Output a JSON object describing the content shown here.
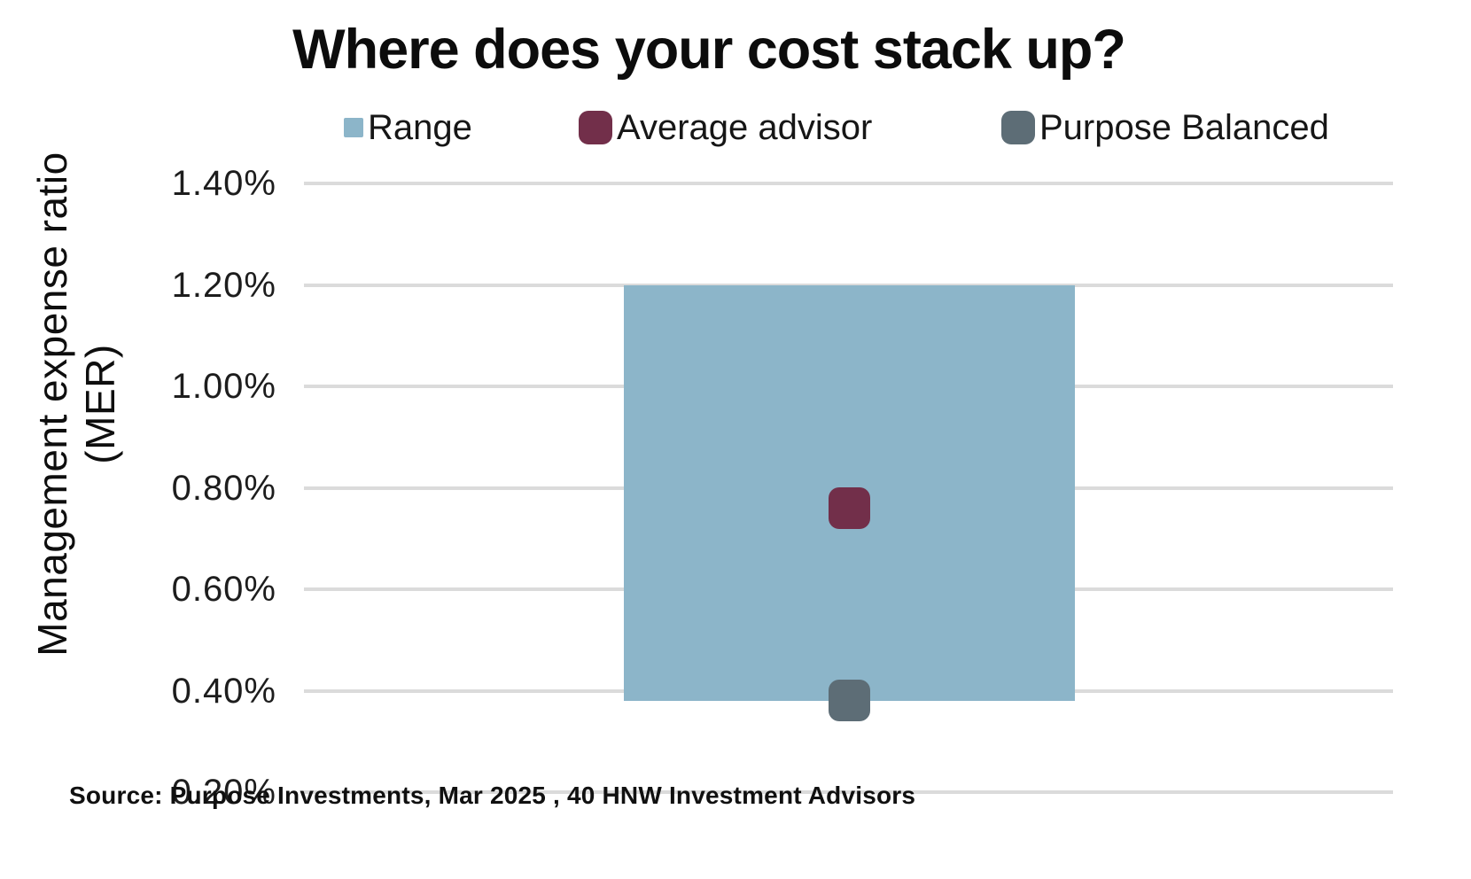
{
  "title": "Where does your cost stack up?",
  "legend": {
    "items": [
      {
        "label": "Range",
        "color": "#8CB5C9",
        "swatch": "small-square"
      },
      {
        "label": "Average advisor",
        "color": "#722F4A",
        "swatch": "rounded-square"
      },
      {
        "label": "Purpose Balanced",
        "color": "#5D6D76",
        "swatch": "rounded-square"
      }
    ]
  },
  "y_axis": {
    "title_line1": "Management expense ratio",
    "title_line2": "(MER)",
    "tick_labels": [
      "1.40%",
      "1.20%",
      "1.00%",
      "0.80%",
      "0.60%",
      "0.40%",
      "0.20%"
    ]
  },
  "source_note": "Source: Purpose Investments, Mar 2025 , 40 HNW Investment Advisors",
  "colors": {
    "background": "#FFFFFF",
    "text": "#111111",
    "gridline": "#DBDBDB",
    "range_bar": "#8CB5C9",
    "average_advisor": "#722F4A",
    "purpose_balanced": "#5D6D76"
  },
  "chart_data": {
    "type": "bar",
    "subtype": "floating-range-bar-with-point-markers",
    "title": "Where does your cost stack up?",
    "ylabel": "Management expense ratio (MER)",
    "xlabel": "",
    "ylim": [
      0.2,
      1.4
    ],
    "yticks": [
      1.4,
      1.2,
      1.0,
      0.8,
      0.6,
      0.4,
      0.2
    ],
    "ytick_unit": "percent",
    "grid": true,
    "legend_position": "top",
    "categories": [
      ""
    ],
    "series": [
      {
        "name": "Range",
        "type": "range-bar",
        "low": 0.38,
        "high": 1.2,
        "unit": "%",
        "color": "#8CB5C9"
      },
      {
        "name": "Average advisor",
        "type": "marker",
        "value": 0.76,
        "unit": "%",
        "color": "#722F4A"
      },
      {
        "name": "Purpose Balanced",
        "type": "marker",
        "value": 0.38,
        "unit": "%",
        "color": "#5D6D76"
      }
    ],
    "source": "Source: Purpose Investments, Mar 2025 , 40 HNW Investment Advisors"
  }
}
